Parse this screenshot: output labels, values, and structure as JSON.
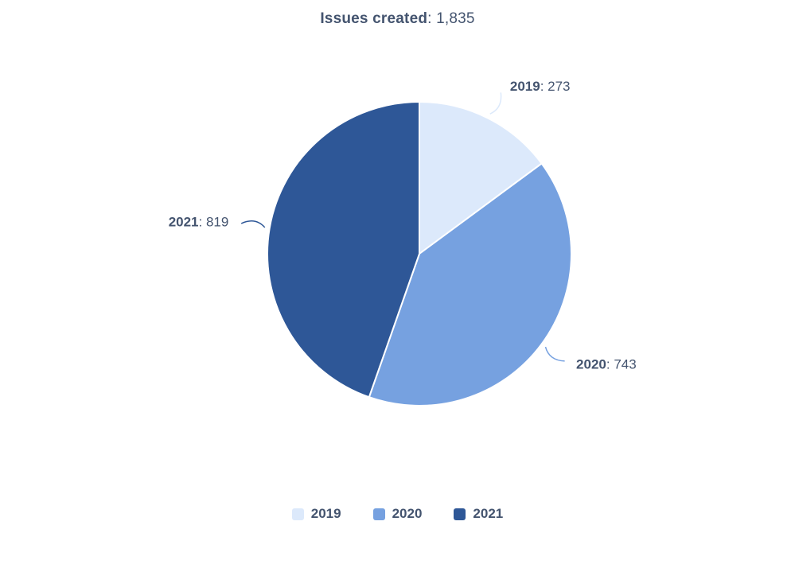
{
  "title": {
    "label": "Issues created",
    "separator": ": ",
    "value": "1,835"
  },
  "style": {
    "text_color": "#44546F",
    "slice_border_color": "#ffffff"
  },
  "chart_data": {
    "type": "pie",
    "title": "Issues created: 1,835",
    "total": 1835,
    "total_display": "1,835",
    "categories": [
      "2019",
      "2020",
      "2021"
    ],
    "values": [
      273,
      743,
      819
    ],
    "colors": [
      "#DCE9FB",
      "#76A1E0",
      "#2E5797"
    ],
    "slice_labels": [
      "2019: 273",
      "2020: 743",
      "2021: 819"
    ],
    "slice_label_separator": ": ",
    "start_angle_deg": 0,
    "direction": "clockwise",
    "legend_position": "bottom",
    "legend_entries": [
      "2019",
      "2020",
      "2021"
    ]
  }
}
